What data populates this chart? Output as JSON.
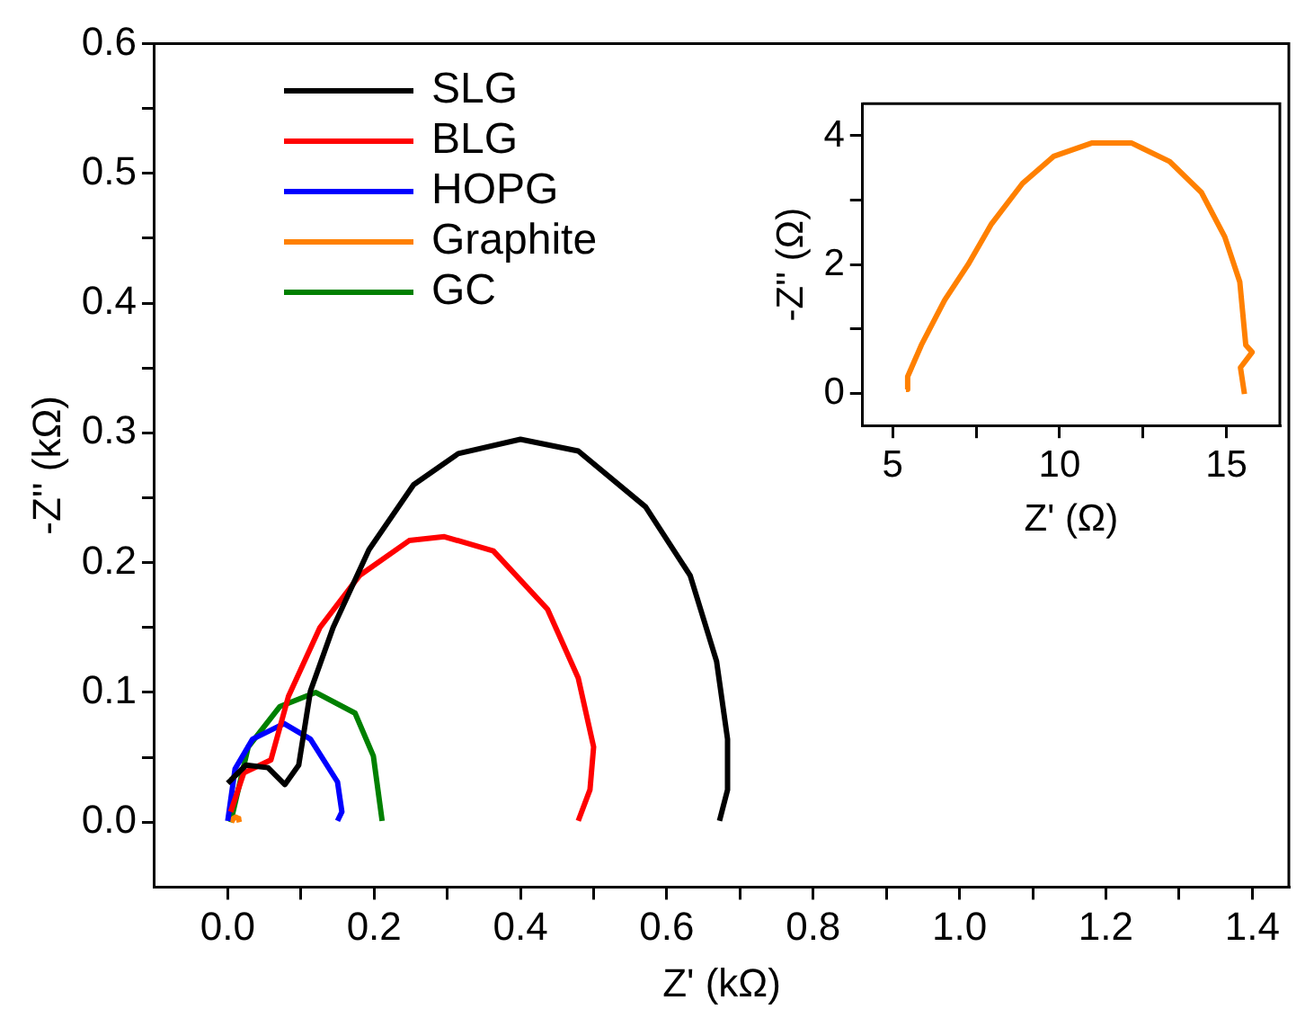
{
  "chart_data": [
    {
      "type": "line",
      "xlabel": "Z' (kΩ)",
      "ylabel": "-Z'' (kΩ)",
      "legend": "top left",
      "xlim": [
        -0.1,
        1.45
      ],
      "ylim": [
        -0.05,
        0.6
      ],
      "xticks": [
        {
          "value": 0,
          "label": "0.0"
        },
        {
          "value": 0.1,
          "label": null
        },
        {
          "value": 0.2,
          "label": "0.2"
        },
        {
          "value": 0.3,
          "label": null
        },
        {
          "value": 0.4,
          "label": "0.4"
        },
        {
          "value": 0.5,
          "label": null
        },
        {
          "value": 0.6,
          "label": "0.6"
        },
        {
          "value": 0.7,
          "label": null
        },
        {
          "value": 0.8,
          "label": "0.8"
        },
        {
          "value": 0.9,
          "label": null
        },
        {
          "value": 1,
          "label": "1.0"
        },
        {
          "value": 1.1,
          "label": null
        },
        {
          "value": 1.2,
          "label": "1.2"
        },
        {
          "value": 1.3,
          "label": null
        },
        {
          "value": 1.4,
          "label": "1.4"
        }
      ],
      "yticks": [
        {
          "value": 0,
          "label": "0.0"
        },
        {
          "value": 0.05,
          "label": null
        },
        0.1,
        {
          "value": 0.15,
          "label": null
        },
        0.2,
        {
          "value": 0.25,
          "label": null
        },
        0.3,
        {
          "value": 0.35,
          "label": null
        },
        0.4,
        {
          "value": 0.45,
          "label": null
        },
        0.5,
        {
          "value": 0.55,
          "label": null
        },
        0.6
      ],
      "series": [
        {
          "name": "SLG",
          "color": "#000000",
          "x": [
            0.0,
            0.025,
            0.055,
            0.078,
            0.097,
            0.113,
            0.144,
            0.193,
            0.254,
            0.315,
            0.4,
            0.479,
            0.571,
            0.632,
            0.668,
            0.683,
            0.683,
            0.672
          ],
          "values": [
            0.03,
            0.044,
            0.042,
            0.029,
            0.044,
            0.101,
            0.15,
            0.21,
            0.26,
            0.284,
            0.295,
            0.286,
            0.243,
            0.19,
            0.124,
            0.064,
            0.025,
            0.001
          ]
        },
        {
          "name": "BLG",
          "color": "#ff0000",
          "x": [
            0.004,
            0.022,
            0.059,
            0.083,
            0.126,
            0.18,
            0.248,
            0.296,
            0.363,
            0.437,
            0.479,
            0.5,
            0.495,
            0.479
          ],
          "values": [
            0.008,
            0.038,
            0.048,
            0.097,
            0.15,
            0.19,
            0.217,
            0.22,
            0.209,
            0.164,
            0.111,
            0.058,
            0.025,
            0.001
          ]
        },
        {
          "name": "HOPG",
          "color": "#0000ff",
          "x": [
            0.0,
            0.01,
            0.034,
            0.077,
            0.113,
            0.15,
            0.156,
            0.15
          ],
          "values": [
            0.001,
            0.041,
            0.064,
            0.076,
            0.064,
            0.031,
            0.008,
            0.001
          ]
        },
        {
          "name": "Graphite",
          "color": "#ff8000",
          "x": [
            0.005,
            0.008,
            0.011,
            0.014,
            0.015,
            0.016
          ],
          "values": [
            0.0,
            0.003,
            0.004,
            0.003,
            0.002,
            0.0
          ]
        },
        {
          "name": "GC",
          "color": "#008000",
          "x": [
            0.004,
            0.028,
            0.071,
            0.12,
            0.174,
            0.199,
            0.211
          ],
          "values": [
            0.0,
            0.058,
            0.089,
            0.1,
            0.084,
            0.051,
            0.001
          ]
        }
      ]
    },
    {
      "type": "line",
      "xlabel": "Z' (Ω)",
      "ylabel": "-Z'' (Ω)",
      "xlim": [
        4.1,
        16.6
      ],
      "ylim": [
        -0.5,
        4.5
      ],
      "xticks": [
        5,
        {
          "value": 7.5,
          "label": null
        },
        10,
        {
          "value": 12.5,
          "label": null
        },
        15
      ],
      "yticks": [
        0,
        {
          "value": 1,
          "label": null
        },
        2,
        {
          "value": 3,
          "label": null
        },
        4
      ],
      "series": [
        {
          "color": "#ff8000",
          "x": [
            5.4,
            5.45,
            5.86,
            6.56,
            7.26,
            7.96,
            8.89,
            9.82,
            10.98,
            12.15,
            13.3,
            14.25,
            14.95,
            15.4,
            15.58,
            15.77,
            15.42,
            15.54
          ],
          "values": [
            0.06,
            0.26,
            0.75,
            1.45,
            2.0,
            2.63,
            3.26,
            3.68,
            3.89,
            3.89,
            3.6,
            3.12,
            2.43,
            1.73,
            0.75,
            0.64,
            0.4,
            -0.01
          ]
        }
      ]
    }
  ]
}
